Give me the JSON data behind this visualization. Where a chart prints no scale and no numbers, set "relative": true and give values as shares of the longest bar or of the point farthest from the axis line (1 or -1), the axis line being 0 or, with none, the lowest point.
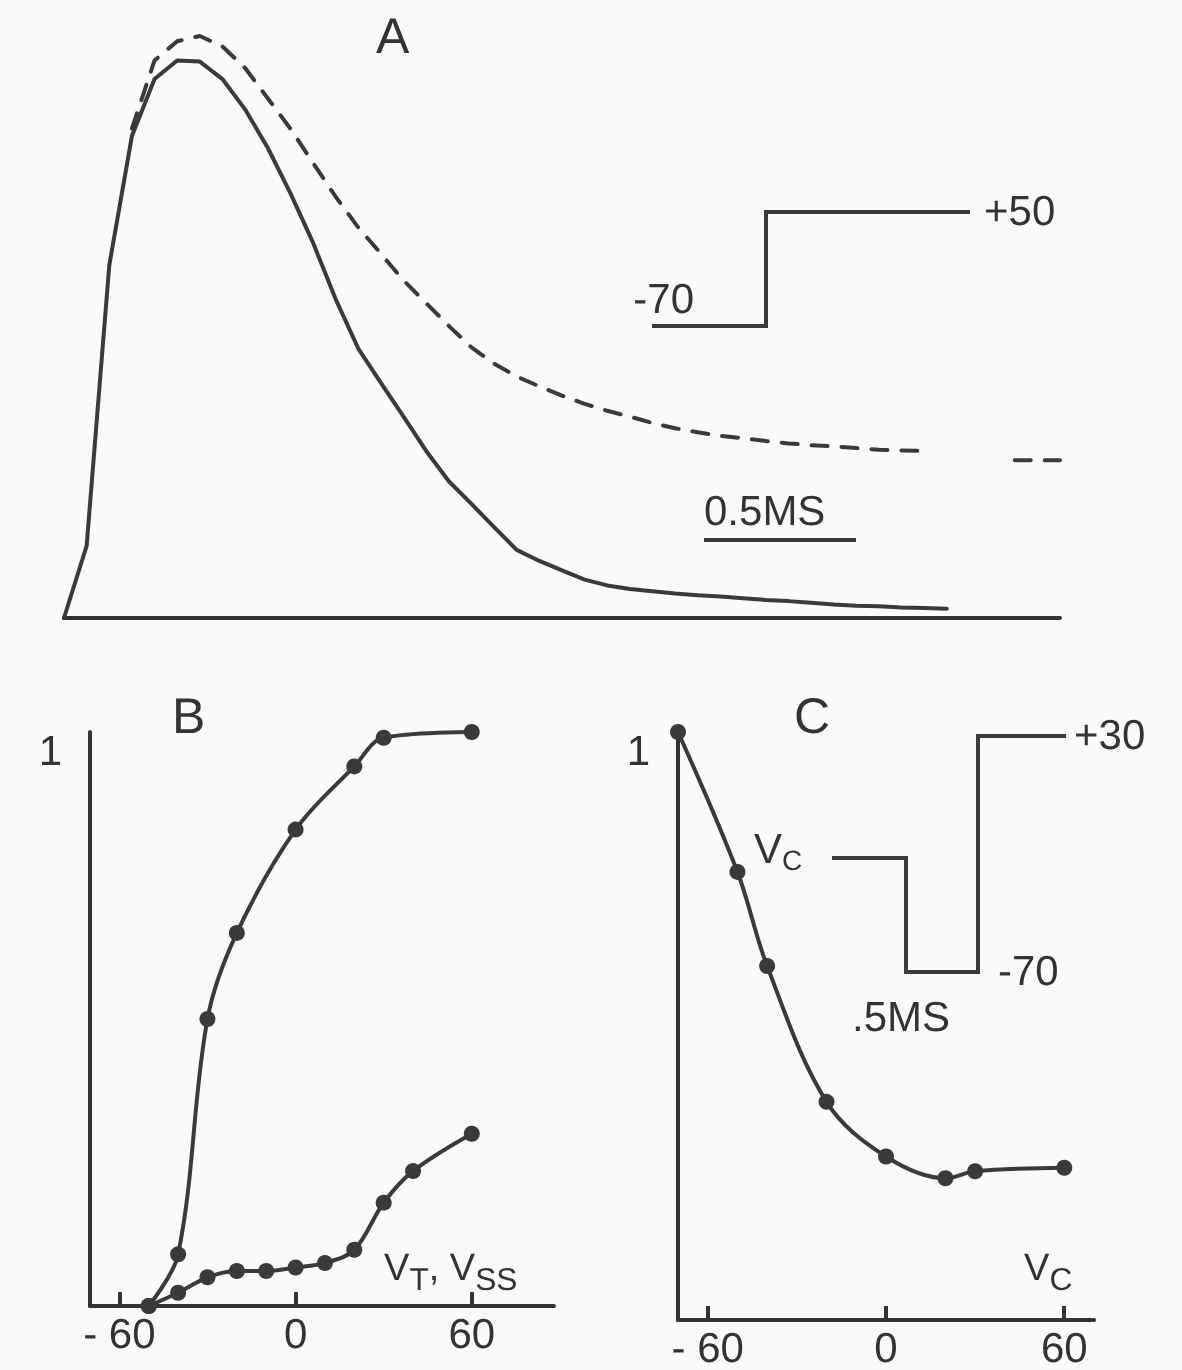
{
  "chart_data": [
    {
      "type": "line",
      "title": "A",
      "relative": true,
      "tick_labels": false,
      "marker": "none",
      "categories": [
        null,
        null,
        null,
        null,
        null,
        null,
        null,
        null,
        null,
        null,
        null,
        null,
        null,
        null,
        null,
        null,
        null,
        null,
        null,
        null,
        null,
        null,
        null,
        null,
        null,
        null,
        null,
        null,
        null,
        null,
        null,
        null,
        null,
        null,
        null,
        null,
        null,
        null,
        null,
        null,
        null,
        null,
        null,
        null,
        null
      ],
      "series": [
        {
          "color": "#3a3a3a",
          "line_style": "solid",
          "values": [
            0,
            0.124,
            0.606,
            0.828,
            0.926,
            0.958,
            0.956,
            0.926,
            0.874,
            0.808,
            0.73,
            0.645,
            0.548,
            0.463,
            0.404,
            0.346,
            0.287,
            0.235,
            0.196,
            0.156,
            0.117,
            0.098,
            0.082,
            0.066,
            0.056,
            0.05,
            0.046,
            0.042,
            0.039,
            0.037,
            0.034,
            0.031,
            0.029,
            0.026,
            0.023,
            0.021,
            0.02,
            0.018,
            0.017,
            0.016,
            null,
            null,
            null,
            null,
            null
          ]
        },
        {
          "color": "#3a3a3a",
          "line_style": "dashed",
          "values": [
            null,
            null,
            null,
            0.841,
            0.958,
            0.991,
            1,
            0.982,
            0.945,
            0.893,
            0.841,
            0.782,
            0.724,
            0.671,
            0.626,
            0.58,
            0.541,
            0.502,
            0.465,
            0.437,
            0.415,
            0.398,
            0.382,
            0.368,
            0.356,
            0.346,
            0.335,
            0.326,
            0.319,
            0.313,
            0.309,
            0.304,
            0.3,
            0.297,
            0.295,
            0.292,
            0.289,
            0.288,
            0.287,
            null,
            null,
            null,
            0.271,
            0.271,
            0.271
          ]
        }
      ],
      "annotations": [
        "-70",
        "+50",
        "0.5MS"
      ]
    },
    {
      "type": "line",
      "title": "B",
      "relative": true,
      "marker": "circle",
      "xlabel": "V$_{T}$, V$_{SS}$",
      "ylabel": "1",
      "xlim": [
        -70,
        88
      ],
      "xticks": [
        -60,
        0,
        60
      ],
      "series": [
        {
          "color": "#3a3a3a",
          "x": [
            -50,
            -40,
            -30,
            -20,
            0,
            20,
            30,
            60
          ],
          "values": [
            0,
            0.09,
            0.5,
            0.65,
            0.83,
            0.94,
            0.99,
            1
          ]
        },
        {
          "color": "#3a3a3a",
          "x": [
            -50,
            -40,
            -30,
            -20,
            -10,
            0,
            10,
            20,
            30,
            40,
            60
          ],
          "values": [
            0,
            0.023,
            0.05,
            0.061,
            0.061,
            0.067,
            0.075,
            0.098,
            0.18,
            0.235,
            0.3
          ]
        }
      ]
    },
    {
      "type": "line",
      "title": "C",
      "relative": true,
      "marker": "circle",
      "xlabel": "V$_{C}$",
      "ylabel": "1",
      "xlim": [
        -70,
        70
      ],
      "xticks": [
        -60,
        0,
        60
      ],
      "series": [
        {
          "color": "#3a3a3a",
          "x": [
            -70,
            -50,
            -40,
            -20,
            0,
            20,
            30,
            60
          ],
          "values": [
            1,
            0.762,
            0.602,
            0.371,
            0.278,
            0.241,
            0.253,
            0.259
          ]
        }
      ],
      "annotations": [
        "V$_{C}$",
        "+30",
        "-70",
        ".5MS"
      ]
    }
  ]
}
